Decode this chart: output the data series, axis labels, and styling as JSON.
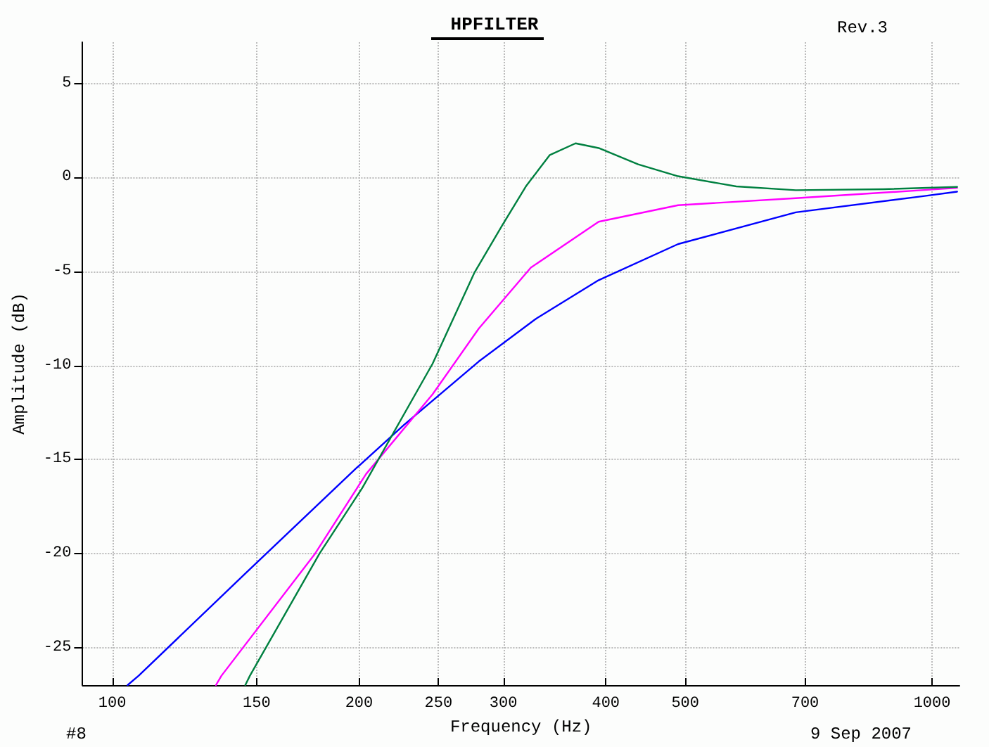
{
  "chart_data": {
    "type": "line",
    "title": "HPFILTER",
    "xlabel": "Frequency (Hz)",
    "ylabel": "Amplitude (dB)",
    "annotations": [
      "Rev.3",
      "#8",
      "9 Sep 2007"
    ],
    "log": "x",
    "grid": true,
    "marker": "none",
    "line_style": "solid",
    "xlim": [
      92,
      1080
    ],
    "xticks": [
      100,
      150,
      200,
      250,
      300,
      400,
      500,
      700,
      1000
    ],
    "ylim": [
      -27,
      7.2
    ],
    "yticks": [
      -25,
      -20,
      -15,
      -10,
      -5,
      0,
      5
    ],
    "series": [
      {
        "color": "#0000ff",
        "x": [
          104.4,
          107.7,
          145,
          198,
          227,
          280,
          328,
          392,
          490,
          682,
          972,
          1073
        ],
        "values": [
          -27,
          -26.5,
          -21.1,
          -15.5,
          -13.15,
          -9.78,
          -7.54,
          -5.46,
          -3.54,
          -1.85,
          -1.0,
          -0.75
        ]
      },
      {
        "color": "#ff00ff",
        "x": [
          133.8,
          135.9,
          176.8,
          204,
          245.9,
          280,
          324,
          392,
          490,
          682,
          972,
          1073
        ],
        "values": [
          -27,
          -26.5,
          -20.0,
          -15.77,
          -11.53,
          -8.03,
          -4.79,
          -2.35,
          -1.47,
          -1.1,
          -0.67,
          -0.55
        ]
      },
      {
        "color": "#008040",
        "x": [
          145.3,
          147.2,
          179,
          201.9,
          245.9,
          276.7,
          299,
          320,
          341.8,
          367.4,
          392,
          438,
          490,
          577,
          682,
          872,
          1073
        ],
        "values": [
          -27,
          -26.5,
          -20.0,
          -16.5,
          -9.9,
          -5.04,
          -2.54,
          -0.43,
          1.2,
          1.82,
          1.57,
          0.7,
          0.07,
          -0.47,
          -0.67,
          -0.62,
          -0.5
        ]
      }
    ]
  }
}
